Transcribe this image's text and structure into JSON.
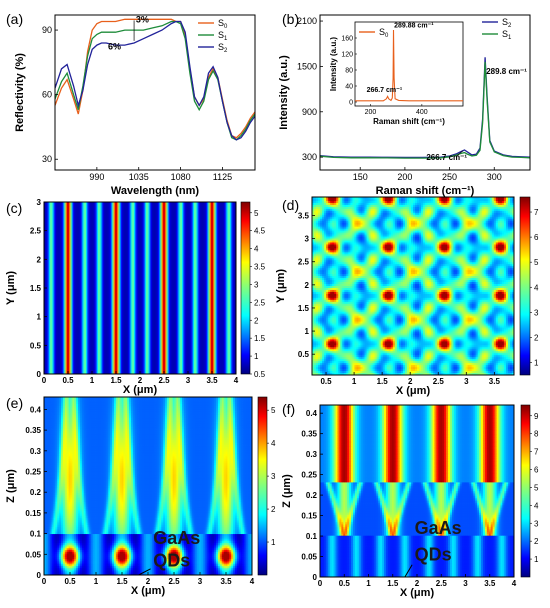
{
  "chart_data": [
    {
      "id": "a",
      "panel_label": "(a)",
      "type": "line",
      "xlabel": "Wavelength (nm)",
      "ylabel": "Reflectivity (%)",
      "xlim": [
        945,
        1160
      ],
      "ylim": [
        25,
        97
      ],
      "xticks": [
        990,
        1035,
        1080,
        1125
      ],
      "yticks": [
        30,
        60,
        90
      ],
      "series": [
        {
          "name": "S",
          "sub": "0",
          "color": "#e8601c",
          "x": [
            945,
            952,
            958,
            965,
            970,
            975,
            980,
            985,
            990,
            995,
            1000,
            1010,
            1020,
            1030,
            1040,
            1050,
            1060,
            1070,
            1075,
            1080,
            1085,
            1090,
            1095,
            1100,
            1105,
            1110,
            1115,
            1120,
            1125,
            1130,
            1135,
            1140,
            1145,
            1150,
            1155,
            1160
          ],
          "y": [
            55,
            63,
            67,
            58,
            51,
            62,
            80,
            90,
            93,
            94,
            94,
            94,
            95,
            95,
            95,
            95,
            95,
            95,
            94,
            94,
            88,
            72,
            59,
            55,
            58,
            68,
            72,
            68,
            58,
            48,
            41,
            40,
            42,
            45,
            49,
            52
          ]
        },
        {
          "name": "S",
          "sub": "1",
          "color": "#1e8c3a",
          "x": [
            945,
            952,
            958,
            965,
            970,
            975,
            980,
            985,
            990,
            995,
            1000,
            1010,
            1020,
            1030,
            1040,
            1050,
            1060,
            1070,
            1075,
            1080,
            1085,
            1090,
            1095,
            1100,
            1105,
            1110,
            1115,
            1120,
            1125,
            1130,
            1135,
            1140,
            1145,
            1150,
            1155,
            1160
          ],
          "y": [
            58,
            66,
            70,
            60,
            53,
            64,
            78,
            86,
            88,
            89,
            89,
            89,
            90,
            90,
            90,
            91,
            92,
            94,
            94,
            93,
            86,
            70,
            57,
            53,
            57,
            67,
            71,
            67,
            57,
            47,
            40,
            39,
            41,
            44,
            48,
            51
          ]
        },
        {
          "name": "S",
          "sub": "2",
          "color": "#22239a",
          "x": [
            945,
            952,
            958,
            965,
            970,
            975,
            980,
            985,
            990,
            995,
            1000,
            1010,
            1020,
            1030,
            1040,
            1050,
            1060,
            1070,
            1075,
            1080,
            1085,
            1090,
            1095,
            1100,
            1105,
            1110,
            1115,
            1120,
            1125,
            1130,
            1135,
            1140,
            1145,
            1150,
            1155,
            1160
          ],
          "y": [
            63,
            72,
            74,
            64,
            55,
            62,
            74,
            81,
            83,
            84,
            84,
            83,
            83,
            84,
            86,
            88,
            90,
            93,
            94,
            94,
            89,
            73,
            59,
            55,
            59,
            70,
            73,
            68,
            57,
            47,
            41,
            39,
            40,
            43,
            47,
            50
          ]
        }
      ],
      "annotations": [
        "3%",
        "6%"
      ]
    },
    {
      "id": "b",
      "panel_label": "(b)",
      "type": "line",
      "xlabel": "Raman shift (cm⁻¹)",
      "ylabel": "Intensity (a.u.)",
      "xlim": [
        105,
        340
      ],
      "ylim": [
        130,
        2180
      ],
      "xticks": [
        150,
        200,
        250,
        300
      ],
      "yticks": [
        300,
        900,
        1500,
        2100
      ],
      "series": [
        {
          "name": "S",
          "sub": "2",
          "color": "#22239a",
          "x": [
            105,
            120,
            140,
            160,
            180,
            200,
            220,
            240,
            250,
            258,
            263,
            266.7,
            270,
            275,
            280,
            284,
            287,
            289.8,
            292,
            295,
            300,
            310,
            320,
            330,
            340
          ],
          "y": [
            320,
            305,
            300,
            300,
            298,
            296,
            296,
            300,
            315,
            345,
            375,
            395,
            370,
            330,
            340,
            420,
            800,
            1620,
            1100,
            520,
            380,
            330,
            310,
            305,
            300
          ]
        },
        {
          "name": "S",
          "sub": "1",
          "color": "#1e8c3a",
          "x": [
            105,
            120,
            140,
            160,
            180,
            200,
            220,
            240,
            250,
            258,
            263,
            266.7,
            270,
            275,
            280,
            284,
            287,
            289.8,
            292,
            295,
            300,
            310,
            320,
            330,
            340
          ],
          "y": [
            312,
            297,
            292,
            292,
            290,
            288,
            288,
            292,
            305,
            330,
            350,
            360,
            340,
            315,
            325,
            390,
            750,
            1560,
            1050,
            500,
            370,
            320,
            300,
            297,
            292
          ]
        }
      ],
      "annotations": [
        "289.8 cm⁻¹",
        "266.7 cm⁻¹"
      ],
      "inset": {
        "xlabel": "Raman shift (cm⁻¹)",
        "ylabel": "Intensity (a.u.)",
        "xlim": [
          140,
          560
        ],
        "ylim": [
          -10,
          200
        ],
        "xticks": [
          200,
          400
        ],
        "yticks": [
          0,
          40,
          80,
          120,
          160
        ],
        "series": [
          {
            "name": "S",
            "sub": "0",
            "color": "#e8601c",
            "x": [
              140,
              180,
              220,
              250,
              262,
              266.7,
              271,
              280,
              285,
              288,
              289.88,
              292,
              296,
              310,
              350,
              400,
              450,
              500,
              560
            ],
            "y": [
              3,
              3,
              3,
              3,
              8,
              14,
              8,
              4,
              10,
              60,
              180,
              60,
              8,
              4,
              3,
              3,
              3,
              3,
              3
            ]
          }
        ],
        "annotations": [
          "289.88 cm⁻¹",
          "266.7 cm⁻¹"
        ]
      }
    },
    {
      "id": "c",
      "panel_label": "(c)",
      "type": "heatmap",
      "xlabel": "X (μm)",
      "ylabel": "Y (μm)",
      "xlim": [
        0,
        4
      ],
      "ylim": [
        0,
        3
      ],
      "xticks": [
        0,
        0.5,
        1,
        1.5,
        2,
        2.5,
        3,
        3.5,
        4
      ],
      "yticks": [
        0,
        0.5,
        1,
        1.5,
        2,
        2.5,
        3
      ],
      "colorbar": {
        "min": 0.5,
        "max": 5.3,
        "ticks": [
          0.5,
          1,
          1.5,
          2,
          2.5,
          3,
          3.5,
          4,
          4.5,
          5
        ]
      },
      "stripe_peaks_x": [
        0.5,
        1.5,
        2.5,
        3.5
      ],
      "stripe_secondary_x": [
        0.15,
        0.85,
        1.15,
        1.85,
        2.15,
        2.85,
        3.15,
        3.85
      ]
    },
    {
      "id": "d",
      "panel_label": "(d)",
      "type": "heatmap",
      "xlabel": "X (μm)",
      "ylabel": "Y (μm)",
      "xlim": [
        0.25,
        3.85
      ],
      "ylim": [
        0.05,
        3.9
      ],
      "xticks": [
        0.5,
        1,
        1.5,
        2,
        2.5,
        3,
        3.5
      ],
      "yticks": [
        0.5,
        1,
        1.5,
        2,
        2.5,
        3,
        3.5
      ],
      "colorbar": {
        "min": 0.5,
        "max": 7.6,
        "ticks": [
          1,
          2,
          3,
          4,
          5,
          6,
          7
        ]
      }
    },
    {
      "id": "e",
      "panel_label": "(e)",
      "type": "heatmap",
      "xlabel": "X (μm)",
      "ylabel": "Z (μm)",
      "xlim": [
        0,
        4
      ],
      "ylim": [
        0,
        0.43
      ],
      "xticks": [
        0,
        0.5,
        1,
        1.5,
        2,
        2.5,
        3,
        3.5,
        4
      ],
      "yticks": [
        0,
        0.05,
        0.1,
        0.15,
        0.2,
        0.25,
        0.3,
        0.35,
        0.4
      ],
      "colorbar": {
        "min": 0,
        "max": 5.4,
        "ticks": [
          1,
          2,
          3,
          4,
          5
        ]
      },
      "annotations": [
        "GaAs",
        "QDs"
      ]
    },
    {
      "id": "f",
      "panel_label": "(f)",
      "type": "heatmap",
      "xlabel": "X (μm)",
      "ylabel": "Z (μm)",
      "xlim": [
        0,
        4
      ],
      "ylim": [
        0,
        0.42
      ],
      "xticks": [
        0,
        0.5,
        1,
        1.5,
        2,
        2.5,
        3,
        3.5,
        4
      ],
      "yticks": [
        0,
        0.05,
        0.1,
        0.15,
        0.2,
        0.25,
        0.3,
        0.35,
        0.4
      ],
      "colorbar": {
        "min": 0,
        "max": 9.6,
        "ticks": [
          1,
          2,
          3,
          4,
          5,
          6,
          7,
          8,
          9
        ]
      },
      "annotations": [
        "GaAs",
        "QDs"
      ]
    }
  ]
}
